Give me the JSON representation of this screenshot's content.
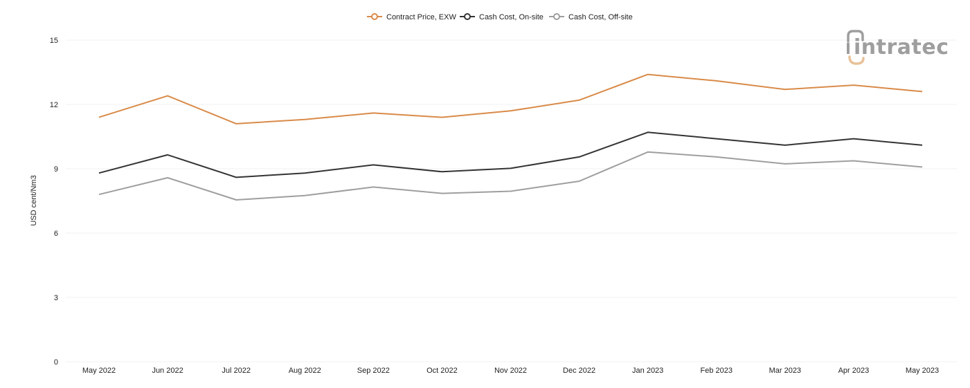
{
  "chart_data": {
    "type": "line",
    "categories": [
      "May 2022",
      "Jun 2022",
      "Jul 2022",
      "Aug 2022",
      "Sep 2022",
      "Oct 2022",
      "Nov 2022",
      "Dec 2022",
      "Jan 2023",
      "Feb 2023",
      "Mar 2023",
      "Apr 2023",
      "May 2023"
    ],
    "series": [
      {
        "name": "Contract Price, EXW",
        "color": "#d98a48",
        "values": [
          11.4,
          12.4,
          11.1,
          11.3,
          11.6,
          11.4,
          11.7,
          12.2,
          13.4,
          13.1,
          12.7,
          12.9,
          12.6
        ]
      },
      {
        "name": "Cash Cost, On-site",
        "color": "#333333",
        "values": [
          8.8,
          9.65,
          8.6,
          8.8,
          9.18,
          8.86,
          9.02,
          9.55,
          10.7,
          10.4,
          10.1,
          10.4,
          10.1
        ]
      },
      {
        "name": "Cash Cost, Off-site",
        "color": "#9e9e9e",
        "values": [
          7.8,
          8.58,
          7.55,
          7.75,
          8.15,
          7.85,
          7.95,
          8.42,
          9.78,
          9.55,
          9.23,
          9.37,
          9.08
        ]
      }
    ],
    "yticks": [
      0,
      3,
      6,
      9,
      12,
      15
    ],
    "ylim": [
      0,
      15
    ],
    "ylabel": "USD cent/Nm3",
    "xlabel": "",
    "grid": true,
    "legend_position": "top-center"
  },
  "logo": {
    "text": "intratec"
  }
}
